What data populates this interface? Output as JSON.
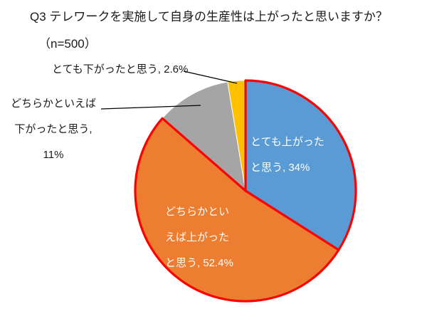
{
  "chart_data": {
    "type": "pie",
    "title": "Q3 テレワークを実施して自身の生産性は上がったと思いますか？",
    "subtitle": "（n=500）",
    "n": 500,
    "start_angle": 0,
    "direction": "clockwise",
    "legend": "none",
    "highlight_stroke": "#FF0000",
    "segments": [
      {
        "label": "とても上がったと思う",
        "value": 34,
        "display": "とても上がったと思う, 34%",
        "color": "#5B9BD5",
        "highlight": true,
        "label_position": "inside"
      },
      {
        "label": "どちらかといえば上がったと思う",
        "value": 52.4,
        "display": "どちらかといえば上がったと思う, 52.4%",
        "color": "#ED7D31",
        "highlight": true,
        "label_position": "inside"
      },
      {
        "label": "どちらかといえば下がったと思う",
        "value": 11,
        "display": "どちらかといえば下がったと思う, 11%",
        "color": "#A5A5A5",
        "highlight": false,
        "label_position": "outside"
      },
      {
        "label": "とても下がったと思う",
        "value": 2.6,
        "display": "とても下がったと思う, 2.6%",
        "color": "#FFC000",
        "highlight": false,
        "label_position": "outside"
      }
    ]
  }
}
